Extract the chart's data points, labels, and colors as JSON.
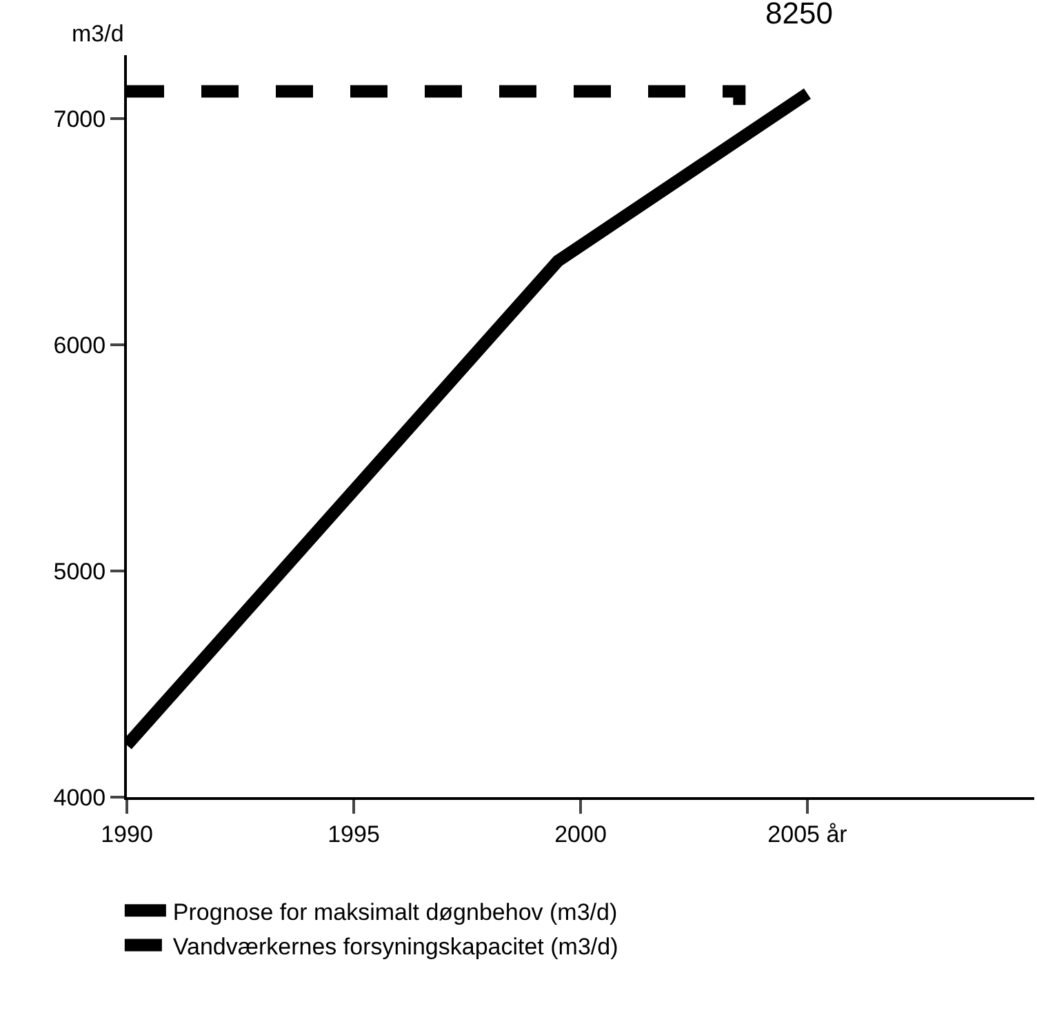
{
  "chart_data": {
    "type": "line",
    "ylabel": "m3/d",
    "xlim": [
      1990,
      2010
    ],
    "xticks": [
      1990,
      1995,
      2000,
      {
        "value": 2005,
        "label": "2005 år"
      }
    ],
    "ylim": [
      4000,
      7280
    ],
    "yticks": [
      4000,
      5000,
      6000,
      7000
    ],
    "grid": false,
    "legend": "bottom",
    "marker": "none",
    "annotations": [
      "8250"
    ],
    "series": [
      {
        "name": "Prognose for maksimalt døgnbehov (m3/d)",
        "color": "#000000",
        "line_style": "solid",
        "x": [
          1990,
          1999.5,
          2005
        ],
        "values": [
          4230,
          6370,
          7110
        ]
      },
      {
        "name": "Vandværkernes forsyningskapacitet (m3/d)",
        "color": "#000000",
        "line_style": "dashed",
        "x": [
          1990,
          2003.5,
          2003.5
        ],
        "values": [
          7120,
          7120,
          7060
        ]
      }
    ]
  }
}
